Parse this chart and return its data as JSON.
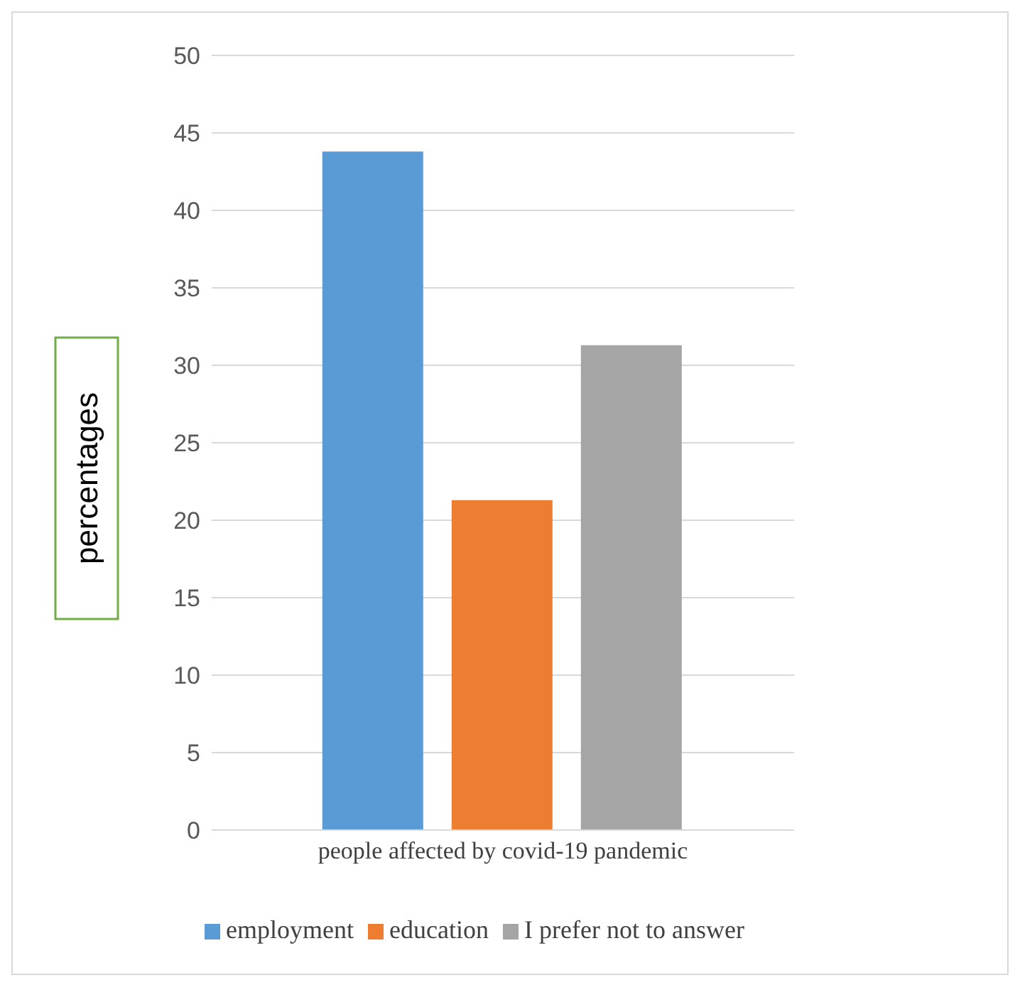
{
  "chart_data": {
    "type": "bar",
    "ylabel": "percentages",
    "categories": [
      "people affected by covid-19 pandemic"
    ],
    "series": [
      {
        "name": "employment",
        "color": "#5b9bd5",
        "values": [
          43.8
        ]
      },
      {
        "name": "education",
        "color": "#ed7d31",
        "values": [
          21.3
        ]
      },
      {
        "name": "I prefer not to answer",
        "color": "#a5a5a5",
        "values": [
          31.3
        ]
      }
    ],
    "ylim": [
      0,
      50
    ],
    "yticks": [
      0,
      5,
      10,
      15,
      20,
      25,
      30,
      35,
      40,
      45,
      50
    ],
    "grid": "y",
    "legend": "bottom"
  }
}
